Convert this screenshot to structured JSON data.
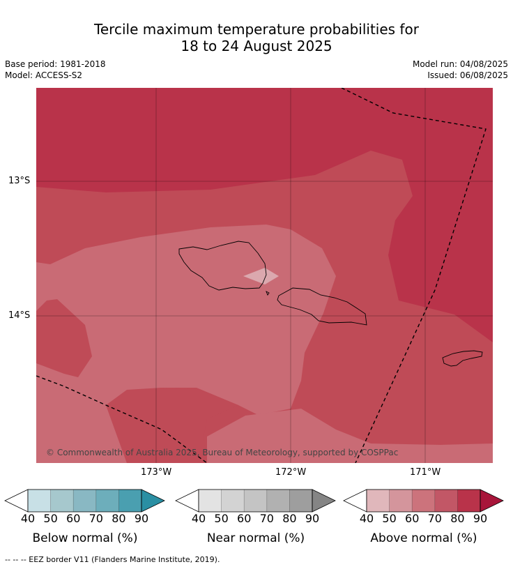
{
  "title": {
    "line1": "Tercile maximum temperature probabilities for",
    "line2": "18 to 24 August 2025"
  },
  "meta": {
    "base_period": "Base period: 1981-2018",
    "model": "Model: ACCESS-S2",
    "model_run": "Model run: 04/08/2025",
    "issued": "Issued: 06/08/2025"
  },
  "map": {
    "lat_labels": [
      "13°S",
      "14°S"
    ],
    "lon_labels": [
      "173°W",
      "172°W",
      "171°W"
    ],
    "copyright": "© Commonwealth of Australia 2025, Bureau of Meteorology, supported by COSPPac",
    "colors": {
      "p50": "#dba8ae",
      "p60": "#c96b75",
      "p70": "#bf4b57",
      "p80": "#b9334a"
    }
  },
  "legends": [
    {
      "caption": "Below normal (%)",
      "ticks": [
        "40",
        "50",
        "60",
        "70",
        "80",
        "90"
      ],
      "colors": [
        "#ffffff",
        "#c8e0e6",
        "#a6c8cd",
        "#89b8c3",
        "#6daebb",
        "#4a9fb0",
        "#2a8fa3"
      ]
    },
    {
      "caption": "Near normal (%)",
      "ticks": [
        "40",
        "50",
        "60",
        "70",
        "80",
        "90"
      ],
      "colors": [
        "#ffffff",
        "#e3e3e3",
        "#d3d3d3",
        "#c4c4c4",
        "#b1b1b1",
        "#9e9e9e",
        "#858585"
      ]
    },
    {
      "caption": "Above normal (%)",
      "ticks": [
        "40",
        "50",
        "60",
        "70",
        "80",
        "90"
      ],
      "colors": [
        "#ffffff",
        "#e0b7bb",
        "#d4959c",
        "#cc737c",
        "#c25766",
        "#b9334a",
        "#a8153a"
      ]
    }
  ],
  "footer": "--  --  -- EEZ border V11 (Flanders Marine Institute, 2019)."
}
